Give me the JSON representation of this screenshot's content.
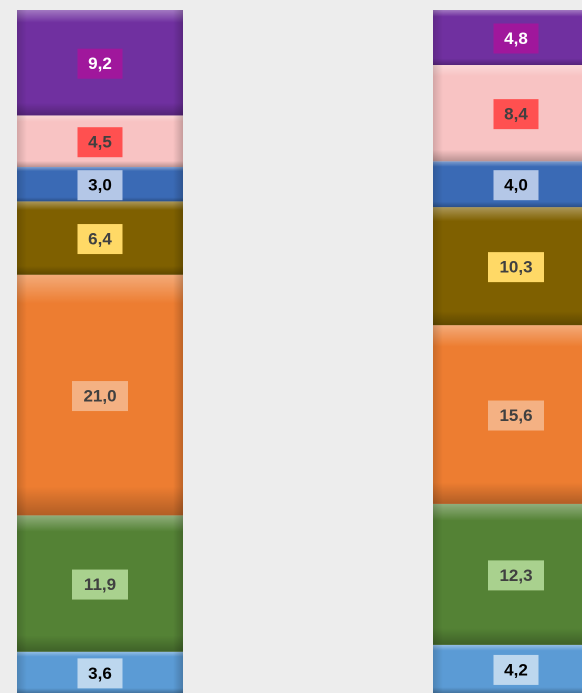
{
  "chart_data": {
    "type": "stacked_bar",
    "series": [
      {
        "color": "#5b9bd5",
        "label_color": "#bdd7ee",
        "text_color": "#000000",
        "values": [
          3.6,
          4.2
        ],
        "value_labels": [
          "3,6",
          "4,2"
        ]
      },
      {
        "color": "#548235",
        "label_color": "#a9d18e",
        "text_color": "#404040",
        "values": [
          11.9,
          12.3
        ],
        "value_labels": [
          "11,9",
          "12,3"
        ]
      },
      {
        "color": "#ed7d31",
        "label_color": "#f4b183",
        "text_color": "#404040",
        "values": [
          21.0,
          15.6
        ],
        "value_labels": [
          "21,0",
          "15,6"
        ]
      },
      {
        "color": "#7f6000",
        "label_color": "#ffd966",
        "text_color": "#404040",
        "values": [
          6.4,
          10.3
        ],
        "value_labels": [
          "6,4",
          "10,3"
        ]
      },
      {
        "color": "#3a6ab5",
        "label_color": "#b4c7e7",
        "text_color": "#000000",
        "values": [
          3.0,
          4.0
        ],
        "value_labels": [
          "3,0",
          "4,0"
        ]
      },
      {
        "color": "#f8c3c3",
        "label_color": "#ff5050",
        "text_color": "#404040",
        "values": [
          4.5,
          8.4
        ],
        "value_labels": [
          "4,5",
          "8,4"
        ]
      },
      {
        "color": "#7030a0",
        "label_color": "#a0179c",
        "text_color": "#ffffff",
        "values": [
          9.2,
          4.8
        ],
        "value_labels": [
          "9,2",
          "4,8"
        ]
      }
    ]
  }
}
